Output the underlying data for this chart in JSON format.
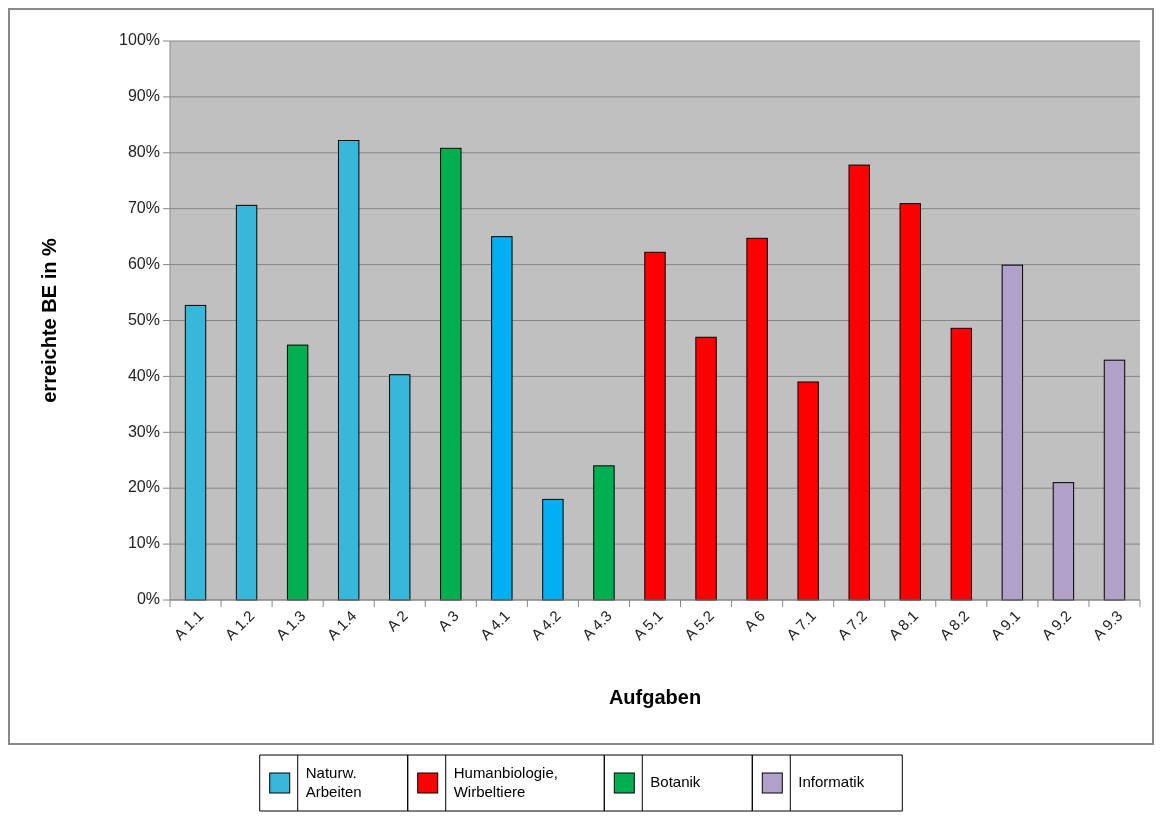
{
  "chart_data": {
    "type": "bar",
    "xlabel": "Aufgaben",
    "ylabel": "erreichte BE in %",
    "categories": [
      "A 1.1",
      "A 1.2",
      "A 1.3",
      "A 1.4",
      "A 2",
      "A 3",
      "A 4.1",
      "A 4.2",
      "A 4.3",
      "A 5.1",
      "A 5.2",
      "A 6",
      "A 7.1",
      "A 7.2",
      "A 8.1",
      "A 8.2",
      "A 9.1",
      "A 9.2",
      "A 9.3"
    ],
    "series": [
      {
        "name": "Naturw. Arbeiten",
        "color": "#35b8da",
        "colors": [
          "#35b8da",
          "#35b8da",
          null,
          "#35b8da",
          "#35b8da",
          null,
          "#00b0f0",
          "#00b0f0",
          null,
          null,
          null,
          null,
          null,
          null,
          null,
          null,
          null,
          null,
          null
        ],
        "values": [
          52.7,
          70.6,
          null,
          82.2,
          40.3,
          null,
          65.0,
          18.0,
          null,
          null,
          null,
          null,
          null,
          null,
          null,
          null,
          null,
          null,
          null
        ]
      },
      {
        "name": "Humanbiologie, Wirbeltiere",
        "color": "#ff0000",
        "values": [
          null,
          null,
          null,
          null,
          null,
          null,
          null,
          null,
          null,
          62.2,
          47.0,
          64.7,
          39.0,
          77.8,
          70.9,
          48.6,
          null,
          null,
          null
        ]
      },
      {
        "name": "Botanik",
        "color": "#00b050",
        "colors": [
          null,
          null,
          "#00b050",
          null,
          null,
          "#00b050",
          null,
          null,
          "#00b050",
          null,
          null,
          null,
          null,
          null,
          null,
          null,
          null,
          null,
          null
        ],
        "values": [
          null,
          null,
          45.6,
          null,
          null,
          80.8,
          null,
          null,
          24.0,
          null,
          null,
          null,
          null,
          null,
          null,
          null,
          null,
          null,
          null
        ]
      },
      {
        "name": "Informatik",
        "color": "#b1a0c7",
        "values": [
          null,
          null,
          null,
          null,
          null,
          null,
          null,
          null,
          null,
          null,
          null,
          null,
          null,
          null,
          null,
          null,
          59.9,
          21.0,
          42.9
        ]
      }
    ],
    "ylim": [
      0,
      100
    ],
    "yticks": [
      {
        "value": 0,
        "label": "0%"
      },
      {
        "value": 10,
        "label": "10%"
      },
      {
        "value": 20,
        "label": "20%"
      },
      {
        "value": 30,
        "label": "30%"
      },
      {
        "value": 40,
        "label": "40%"
      },
      {
        "value": 50,
        "label": "50%"
      },
      {
        "value": 60,
        "label": "60%"
      },
      {
        "value": 70,
        "label": "70%"
      },
      {
        "value": 80,
        "label": "80%"
      },
      {
        "value": 90,
        "label": "90%"
      },
      {
        "value": 100,
        "label": "100%"
      }
    ],
    "grid": "y",
    "legend": "bottom"
  }
}
